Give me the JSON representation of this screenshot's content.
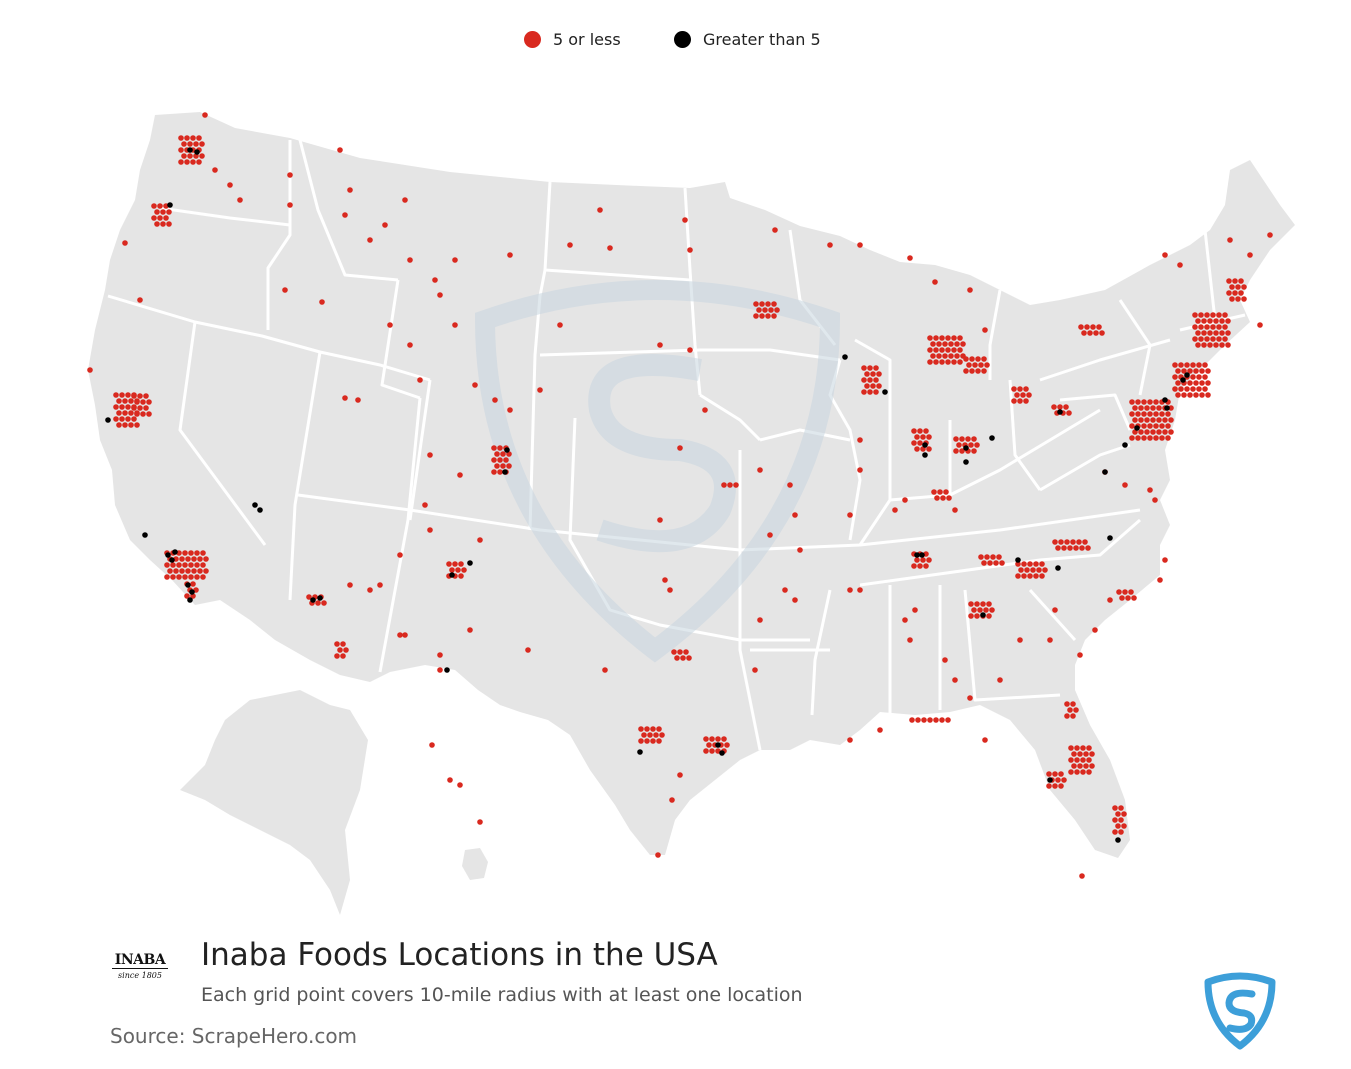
{
  "legend": {
    "items": [
      {
        "label": "5 or less",
        "color": "#d9291f"
      },
      {
        "label": "Greater than 5",
        "color": "#000000"
      }
    ]
  },
  "brand": {
    "logo_word": "INABA",
    "logo_tagline": "since 1805"
  },
  "title": "Inaba Foods Locations in the USA",
  "subtitle": "Each grid point covers 10-mile radius with at least one location",
  "source": "Source: ScrapeHero.com",
  "colors": {
    "land": "#e5e5e5",
    "border": "#ffffff",
    "low": "#d9291f",
    "high": "#000000",
    "watermark": "#c8d6e0",
    "shield": "#3d9fd9"
  },
  "icons": {
    "watermark": "scrapehero-shield-icon",
    "corner_logo": "scrapehero-shield-icon"
  }
}
